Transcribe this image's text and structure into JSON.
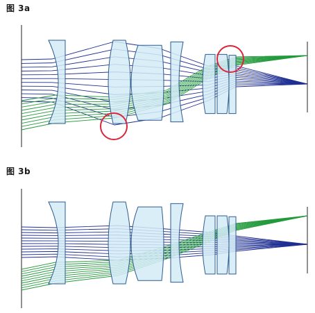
{
  "figures": [
    {
      "label": "图 3a"
    },
    {
      "label": "图 3b"
    }
  ],
  "colors": {
    "lens_fill": "#d3ebf7",
    "lens_stroke": "#2d5b8f",
    "on_axis_rays": "#1f2f92",
    "off_axis_rays": "#239a3c",
    "highlight_circle": "#d9263a",
    "axis_line": "#222222"
  }
}
